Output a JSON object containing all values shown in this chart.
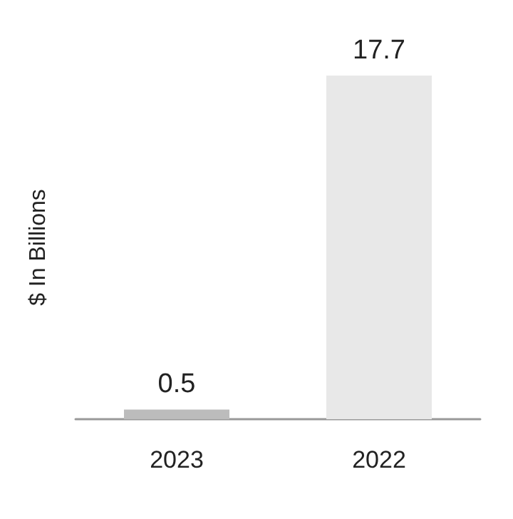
{
  "chart_data": {
    "type": "bar",
    "ylabel": "$ In Billions",
    "categories": [
      "2023",
      "2022"
    ],
    "values": [
      0.5,
      17.7
    ],
    "colors": [
      "#bcbcbc",
      "#e8e8e8"
    ],
    "data_labels": true
  }
}
